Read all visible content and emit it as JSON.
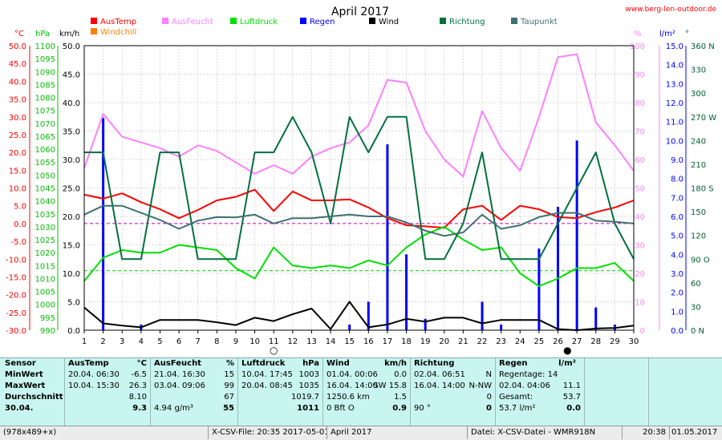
{
  "chart_data": {
    "type": "line",
    "title": "April 2017",
    "watermark": "www.berg-len-outdoor.de",
    "x": [
      1,
      2,
      3,
      4,
      5,
      6,
      7,
      8,
      9,
      10,
      11,
      12,
      13,
      14,
      15,
      16,
      17,
      18,
      19,
      20,
      21,
      22,
      23,
      24,
      25,
      26,
      27,
      28,
      29,
      30
    ],
    "xlim": [
      1,
      30
    ],
    "axes": {
      "temp": {
        "unit": "°C",
        "ticks": [
          "50.0",
          "45.0",
          "40.0",
          "35.0",
          "30.0",
          "25.0",
          "20.0",
          "15.0",
          "10.0",
          "5.0",
          "0.0",
          "-5.0",
          "-10.0",
          "-15.0",
          "-20.0",
          "-25.0",
          "-30.0"
        ],
        "range": [
          -30,
          50
        ],
        "color": "#ff0000"
      },
      "pressure": {
        "unit": "hPa",
        "ticks": [
          "1100",
          "1095",
          "1090",
          "1085",
          "1080",
          "1075",
          "1070",
          "1065",
          "1060",
          "1055",
          "1050",
          "1045",
          "1040",
          "1035",
          "1030",
          "1025",
          "1020",
          "1015",
          "1010",
          "1005",
          "1000",
          "995",
          "990"
        ],
        "range": [
          990,
          1100
        ],
        "color": "#00c000"
      },
      "wind": {
        "unit": "km/h",
        "ticks": [
          "50.0",
          "45.0",
          "40.0",
          "35.0",
          "30.0",
          "25.0",
          "20.0",
          "15.0",
          "10.0",
          "5.0",
          "0.0"
        ],
        "range": [
          0,
          50
        ],
        "color": "#000000"
      },
      "humidity": {
        "unit": "%",
        "ticks": [
          "100",
          "90",
          "80",
          "70",
          "60",
          "50",
          "40",
          "30",
          "20",
          "10",
          "0"
        ],
        "range": [
          0,
          100
        ],
        "color": "#ff80ff"
      },
      "rain": {
        "unit": "l/m²",
        "ticks": [
          "15.0",
          "14.0",
          "13.0",
          "12.0",
          "11.0",
          "10.0",
          "9.0",
          "8.0",
          "7.0",
          "6.0",
          "5.0",
          "4.0",
          "3.0",
          "2.0",
          "1.0",
          "0.0"
        ],
        "range": [
          0,
          15
        ],
        "color": "#0000ff"
      },
      "direction": {
        "unit": "°",
        "ticks": [
          "360 N",
          "330",
          "300",
          "270 W",
          "240",
          "210",
          "180 S",
          "150",
          "120",
          "90 O",
          "60",
          "30",
          "0 N"
        ],
        "range": [
          0,
          360
        ],
        "color": "#006030"
      }
    },
    "legend": [
      {
        "name": "AusTemp",
        "color": "#ff0000"
      },
      {
        "name": "AusFeucht",
        "color": "#ff80ff"
      },
      {
        "name": "Luftdruck",
        "color": "#00e000"
      },
      {
        "name": "Regen",
        "color": "#0000ff"
      },
      {
        "name": "Wind",
        "color": "#000000"
      },
      {
        "name": "Richtung",
        "color": "#007040"
      },
      {
        "name": "Taupunkt",
        "color": "#407070"
      },
      {
        "name": "Windchill",
        "color": "#ff8000"
      }
    ],
    "series": [
      {
        "name": "AusTemp",
        "axis": "temp",
        "color": "#ff0000",
        "values": [
          8.1,
          7.0,
          8.5,
          6.0,
          4.0,
          1.5,
          3.8,
          6.5,
          7.5,
          9.5,
          3.5,
          9.0,
          6.5,
          6.5,
          6.8,
          4.5,
          1.5,
          -0.5,
          -0.8,
          -1.2,
          4.0,
          5.0,
          1.0,
          5.0,
          4.0,
          1.8,
          1.5,
          3.2,
          4.5,
          6.5
        ]
      },
      {
        "name": "AusFeucht",
        "axis": "humidity",
        "color": "#ff80ff",
        "values": [
          57,
          76,
          68,
          66,
          64,
          61,
          65,
          63,
          59,
          55,
          58,
          55,
          61,
          64,
          66,
          72,
          88,
          87,
          70,
          60,
          54,
          77,
          64,
          56,
          75,
          96,
          97,
          73,
          65,
          56
        ]
      },
      {
        "name": "Luftdruck",
        "axis": "pressure",
        "color": "#00e000",
        "values": [
          1009,
          1018,
          1021,
          1020,
          1020,
          1023,
          1022,
          1021,
          1014,
          1010,
          1022,
          1015,
          1014,
          1015,
          1014,
          1017,
          1015,
          1022,
          1027,
          1030,
          1025,
          1021,
          1022,
          1012,
          1007,
          1010,
          1014,
          1014,
          1016,
          1009
        ]
      },
      {
        "name": "Wind",
        "axis": "wind",
        "color": "#000000",
        "values": [
          4.0,
          1.2,
          0.8,
          0.5,
          1.8,
          1.8,
          1.8,
          1.4,
          0.9,
          2.2,
          1.6,
          2.8,
          3.8,
          0.2,
          5.0,
          0.5,
          1.0,
          2.0,
          1.5,
          2.2,
          2.2,
          1.2,
          1.8,
          1.8,
          1.8,
          0.2,
          0.0,
          0.3,
          0.4,
          0.8
        ]
      },
      {
        "name": "Richtung",
        "axis": "direction",
        "color": "#007040",
        "values": [
          225,
          225,
          90,
          90,
          225,
          225,
          90,
          90,
          90,
          225,
          225,
          270,
          225,
          135,
          270,
          225,
          270,
          270,
          90,
          90,
          135,
          225,
          90,
          90,
          90,
          135,
          180,
          225,
          135,
          90
        ]
      },
      {
        "name": "Taupunkt",
        "axis": "temp",
        "color": "#407070",
        "values": [
          2.5,
          5.0,
          5.0,
          3.0,
          1.0,
          -1.5,
          0.8,
          1.8,
          1.7,
          2.5,
          0.0,
          1.5,
          1.5,
          2.0,
          2.5,
          2.0,
          2.0,
          0.3,
          -2.0,
          -3.5,
          -2.5,
          2.5,
          -1.5,
          -0.5,
          1.8,
          3.0,
          3.0,
          0.8,
          0.5,
          0.0
        ]
      }
    ],
    "rain": {
      "name": "Regen",
      "axis": "rain",
      "color": "#0000ff",
      "x": [
        2,
        4,
        15,
        16,
        17,
        18,
        19,
        22,
        23,
        25,
        26,
        27,
        28,
        29
      ],
      "values": [
        11.2,
        0.3,
        0.3,
        1.5,
        9.8,
        4.0,
        0.6,
        1.5,
        0.3,
        4.3,
        6.5,
        10.0,
        1.2,
        0.3
      ]
    },
    "reference_lines": [
      {
        "axis": "temp",
        "value": 0,
        "color": "#c000c0"
      },
      {
        "axis": "pressure",
        "value": 1013,
        "color": "#00d000"
      }
    ],
    "moon_phases": [
      {
        "x": 11,
        "phase": "Vollmond",
        "symbol": "○"
      },
      {
        "x": 26.5,
        "phase": "Neumond",
        "symbol": "●"
      }
    ],
    "grid": true
  },
  "stats": {
    "col_sensor": {
      "header": "Sensor",
      "rows": [
        "MinWert",
        "MaxWert",
        "Durchschnitt",
        "30.04."
      ]
    },
    "col_temp": {
      "header": "AusTemp",
      "unit": "°C",
      "rows": [
        [
          "20.04.  06:30",
          "-6.5"
        ],
        [
          "10.04.  15:30",
          "26.3"
        ],
        [
          "",
          "8.10"
        ],
        [
          "",
          "9.3"
        ]
      ]
    },
    "col_hum": {
      "header": "AusFeucht",
      "unit": "%",
      "rows": [
        [
          "21.04.  16:30",
          "15"
        ],
        [
          "03.04.  09:06",
          "99"
        ],
        [
          "",
          "67"
        ],
        [
          "4.94 g/m³",
          "55"
        ]
      ]
    },
    "col_press": {
      "header": "Luftdruck",
      "unit": "hPa",
      "rows": [
        [
          "10.04.  17:45",
          "1003"
        ],
        [
          "20.04.  08:45",
          "1035"
        ],
        [
          "",
          "1019.7"
        ],
        [
          "",
          "1011"
        ]
      ]
    },
    "col_wind": {
      "header": "Wind",
      "unit": "km/h",
      "rows": [
        [
          "01.04.  00:06",
          "0.0"
        ],
        [
          "16.04.  14:00",
          "SW 15.8"
        ],
        [
          "1250.6 km",
          "1.5"
        ],
        [
          "0 Bft O",
          "0.9"
        ]
      ]
    },
    "col_dir": {
      "header": "Richtung",
      "unit": "",
      "rows": [
        [
          "02.04.  06:51",
          "N"
        ],
        [
          "16.04.  14:00",
          "N-NW"
        ],
        [
          "",
          "0"
        ],
        [
          "90 °",
          "0"
        ]
      ]
    },
    "col_rain": {
      "header": "Regen",
      "unit": "l/m²",
      "rows": [
        [
          "Regentage: 14",
          ""
        ],
        [
          "02.04.  04:06",
          "11.1"
        ],
        [
          "Gesamt:",
          "53.7"
        ],
        [
          "53.7 l/m²",
          "0.0"
        ]
      ]
    }
  },
  "status": {
    "resolution": "(978x489+x)",
    "file": "X-CSV-File:  20:35  2017-05-01",
    "month": "April 2017",
    "datei": "Datei: X-CSV-Datei - WMR918N",
    "time": "20:38",
    "date": "01.05.2017"
  }
}
